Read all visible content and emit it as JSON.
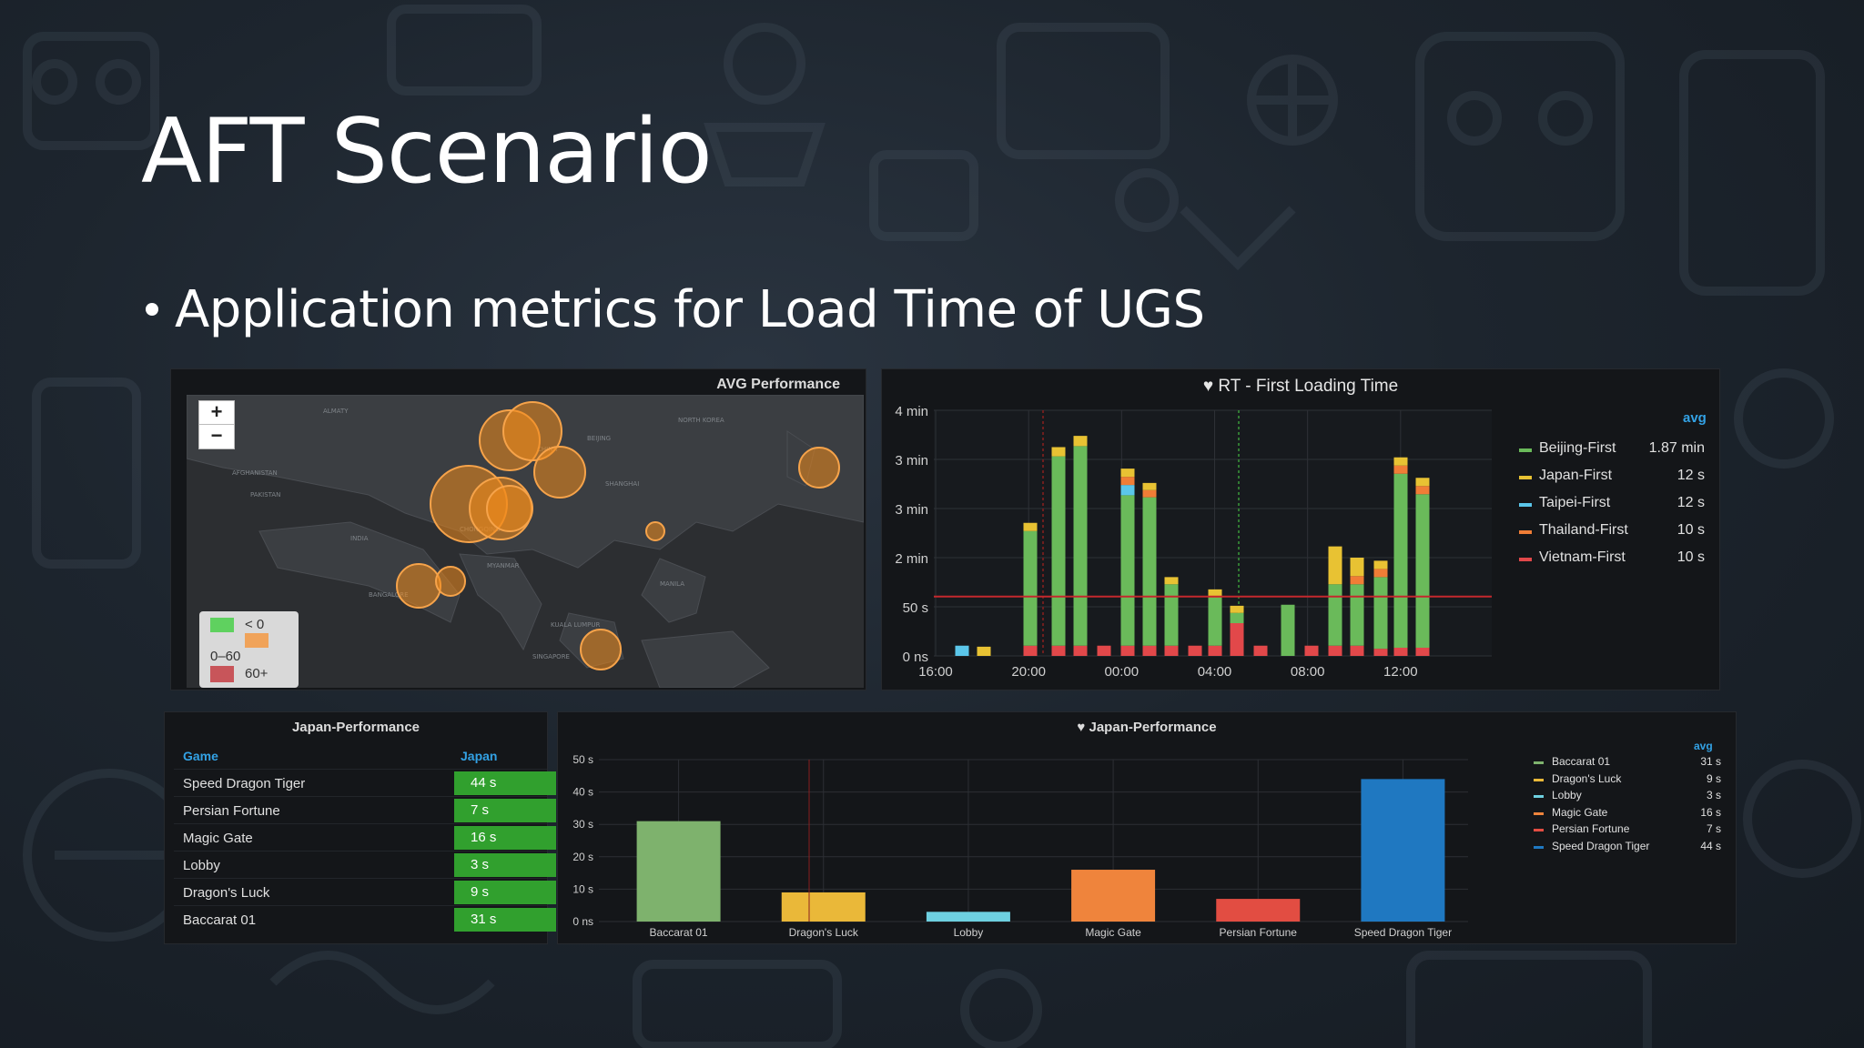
{
  "slide": {
    "title": "AFT Scenario",
    "bullet": "Application metrics for Load Time of UGS"
  },
  "map_panel": {
    "title": "AVG Performance",
    "zoom_in": "+",
    "zoom_out": "−",
    "legend": [
      "< 0",
      "0–60",
      "60+"
    ],
    "legend_colors": [
      "#5fd15f",
      "#f0a35a",
      "#c8555a"
    ]
  },
  "rt_panel": {
    "title": "RT - First Loading Time",
    "legend_header": "avg",
    "legend": [
      {
        "name": "Beijing-First",
        "value": "1.87 min",
        "color": "#6aba5a"
      },
      {
        "name": "Japan-First",
        "value": "12 s",
        "color": "#e8c233"
      },
      {
        "name": "Taipei-First",
        "value": "12 s",
        "color": "#5bc6ea"
      },
      {
        "name": "Thailand-First",
        "value": "10 s",
        "color": "#f07d36"
      },
      {
        "name": "Vietnam-First",
        "value": "10 s",
        "color": "#e2484a"
      }
    ]
  },
  "table_panel": {
    "title": "Japan-Performance",
    "columns": [
      "Game",
      "Japan"
    ],
    "rows": [
      {
        "game": "Speed Dragon Tiger",
        "value": "44 s"
      },
      {
        "game": "Persian Fortune",
        "value": "7 s"
      },
      {
        "game": "Magic Gate",
        "value": "16 s"
      },
      {
        "game": "Lobby",
        "value": "3 s"
      },
      {
        "game": "Dragon's Luck",
        "value": "9 s"
      },
      {
        "game": "Baccarat 01",
        "value": "31 s"
      }
    ]
  },
  "japan_panel": {
    "title": "Japan-Performance",
    "legend_header": "avg",
    "legend": [
      {
        "name": "Baccarat 01",
        "value": "31 s",
        "color": "#7eb26d"
      },
      {
        "name": "Dragon's Luck",
        "value": "9 s",
        "color": "#eab839"
      },
      {
        "name": "Lobby",
        "value": "3 s",
        "color": "#6ed0e0"
      },
      {
        "name": "Magic Gate",
        "value": "16 s",
        "color": "#ef843c"
      },
      {
        "name": "Persian Fortune",
        "value": "7 s",
        "color": "#e24d42"
      },
      {
        "name": "Speed Dragon Tiger",
        "value": "44 s",
        "color": "#1f78c1"
      }
    ]
  },
  "chart_data": [
    {
      "type": "bar",
      "title": "RT - First Loading Time",
      "x_ticks": [
        "16:00",
        "20:00",
        "00:00",
        "04:00",
        "08:00",
        "12:00"
      ],
      "y_ticks": [
        "0 ns",
        "50 s",
        "2 min",
        "3 min",
        "3 min",
        "4 min"
      ],
      "ylim_seconds": [
        0,
        240
      ],
      "threshold_seconds": 58,
      "series_names": [
        "Beijing-First",
        "Japan-First",
        "Taipei-First",
        "Thailand-First",
        "Vietnam-First"
      ],
      "stacks_seconds": [
        [
          0,
          0,
          10,
          0,
          0
        ],
        [
          0,
          9,
          0,
          0,
          0
        ],
        [
          112,
          8,
          0,
          0,
          10
        ],
        [
          185,
          9,
          0,
          0,
          10
        ],
        [
          195,
          10,
          0,
          0,
          10
        ],
        [
          0,
          0,
          0,
          0,
          10
        ],
        [
          147,
          8,
          10,
          8,
          10
        ],
        [
          145,
          7,
          0,
          7,
          10
        ],
        [
          60,
          7,
          0,
          0,
          10
        ],
        [
          0,
          0,
          0,
          0,
          10
        ],
        [
          47,
          8,
          0,
          0,
          10
        ],
        [
          10,
          7,
          0,
          0,
          32
        ],
        [
          0,
          0,
          0,
          0,
          10
        ],
        [
          50,
          0,
          0,
          0,
          0
        ],
        [
          0,
          0,
          0,
          0,
          10
        ],
        [
          60,
          37,
          0,
          0,
          10
        ],
        [
          60,
          18,
          0,
          8,
          10
        ],
        [
          70,
          8,
          0,
          8,
          7
        ],
        [
          170,
          8,
          0,
          8,
          8
        ],
        [
          150,
          8,
          0,
          8,
          8
        ]
      ]
    },
    {
      "type": "bar",
      "title": "Japan-Performance",
      "categories": [
        "Baccarat 01",
        "Dragon's Luck",
        "Lobby",
        "Magic Gate",
        "Persian Fortune",
        "Speed Dragon Tiger"
      ],
      "values": [
        31,
        9,
        3,
        16,
        7,
        44
      ],
      "colors": [
        "#7eb26d",
        "#eab839",
        "#6ed0e0",
        "#ef843c",
        "#e24d42",
        "#1f78c1"
      ],
      "y_ticks": [
        "0 ns",
        "10 s",
        "20 s",
        "30 s",
        "40 s",
        "50 s"
      ],
      "ylim": [
        0,
        50
      ]
    }
  ]
}
